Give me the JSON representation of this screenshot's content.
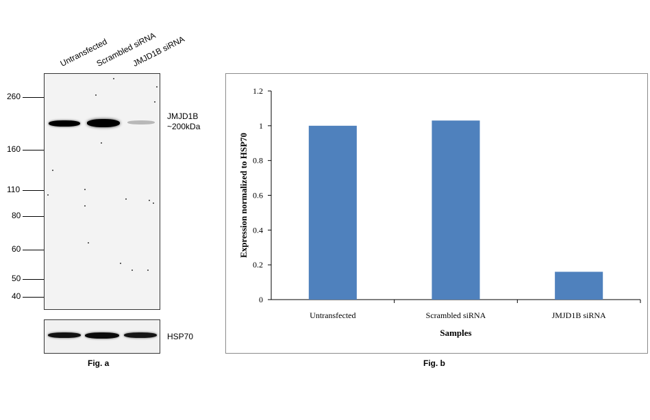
{
  "fig_a": {
    "lanes": [
      "Untransfected",
      "Scrambled siRNA",
      "JMJD1B siRNA"
    ],
    "markers": [
      "260",
      "160",
      "110",
      "80",
      "60",
      "50",
      "40"
    ],
    "band_label_line1": "JMJD1B",
    "band_label_line2": "~200kDa",
    "loading_label": "HSP70",
    "caption": "Fig. a"
  },
  "fig_b": {
    "caption": "Fig. b"
  },
  "chart_data": {
    "type": "bar",
    "categories": [
      "Untransfected",
      "Scrambled siRNA",
      "JMJD1B siRNA"
    ],
    "series": [
      {
        "values": [
          1.0,
          1.03,
          0.16
        ]
      }
    ],
    "xlabel": "Samples",
    "ylabel": "Expression normalized to HSP70",
    "ylim": [
      0,
      1.2
    ],
    "yticks": [
      "0",
      "0.2",
      "0.4",
      "0.6",
      "0.8",
      "1",
      "1.2"
    ],
    "bar_color": "#4f81bd",
    "grid": false,
    "legend": "none"
  }
}
